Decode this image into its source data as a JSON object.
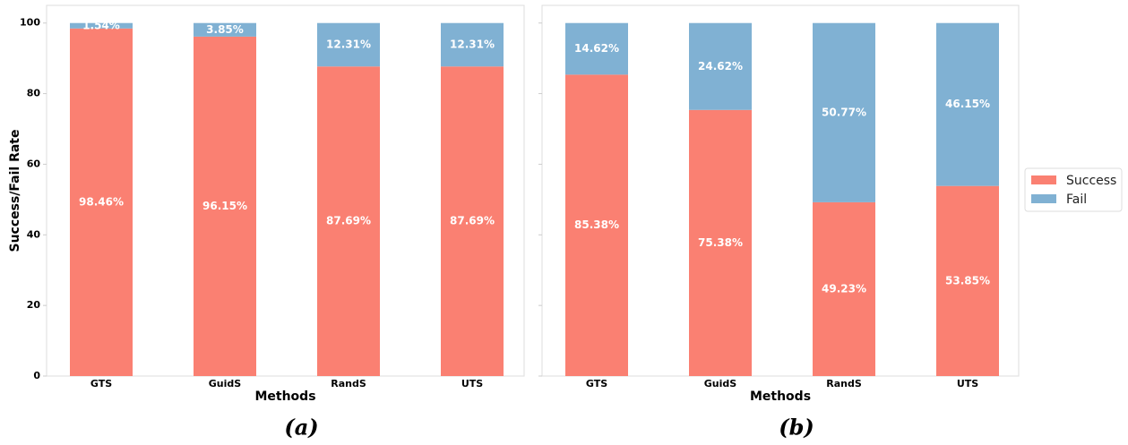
{
  "chart_data": [
    {
      "type": "stacked_bar",
      "caption": "(a)",
      "xlabel": "Methods",
      "ylabel": "Success/Fail Rate",
      "categories": [
        "GTS",
        "GuidS",
        "RandS",
        "UTS"
      ],
      "series": [
        {
          "name": "Success",
          "color": "#fa8072",
          "values": [
            98.46,
            96.15,
            87.69,
            87.69
          ],
          "value_labels": [
            "98.46%",
            "96.15%",
            "87.69%",
            "87.69%"
          ]
        },
        {
          "name": "Fail",
          "color": "#80b1d3",
          "values": [
            1.54,
            3.85,
            12.31,
            12.31
          ],
          "value_labels": [
            "1.54%",
            "3.85%",
            "12.31%",
            "12.31%"
          ]
        }
      ],
      "ylim": [
        0,
        105
      ],
      "yticks": [
        0,
        20,
        40,
        60,
        80,
        100
      ],
      "ytick_labels": true
    },
    {
      "type": "stacked_bar",
      "caption": "(b)",
      "xlabel": "Methods",
      "categories": [
        "GTS",
        "GuidS",
        "RandS",
        "UTS"
      ],
      "series": [
        {
          "name": "Success",
          "color": "#fa8072",
          "values": [
            85.38,
            75.38,
            49.23,
            53.85
          ],
          "value_labels": [
            "85.38%",
            "75.38%",
            "49.23%",
            "53.85%"
          ]
        },
        {
          "name": "Fail",
          "color": "#80b1d3",
          "values": [
            14.62,
            24.62,
            50.77,
            46.15
          ],
          "value_labels": [
            "14.62%",
            "24.62%",
            "50.77%",
            "46.15%"
          ]
        }
      ],
      "ylim": [
        0,
        105
      ],
      "yticks": [
        0,
        20,
        40,
        60,
        80,
        100
      ],
      "ytick_labels": false,
      "legend": "right"
    }
  ]
}
